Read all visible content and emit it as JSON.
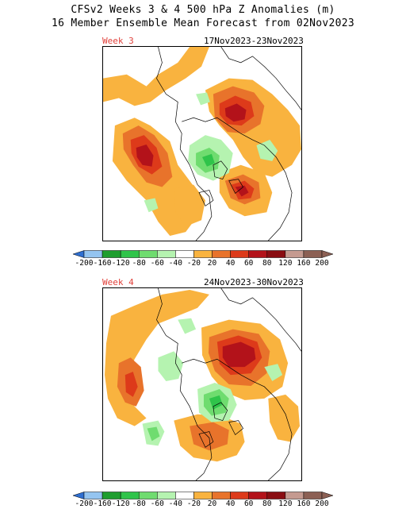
{
  "title": "CFSv2 Weeks 3 & 4 500 hPa Z Anomalies (m)",
  "subtitle": "16 Member Ensemble Mean Forecast from 02Nov2023",
  "colors": {
    "neg200": "#2f6fd1",
    "neg160": "#94c4f0",
    "neg120": "#1f9e2f",
    "neg80": "#2fc44a",
    "neg60": "#6fdc6f",
    "neg40": "#b5f3b0",
    "pos20": "#f9b33f",
    "pos40": "#e8732b",
    "pos60": "#dd3a1a",
    "pos80": "#b3121a",
    "pos120": "#8a0d12",
    "pos160": "#c59a90",
    "pos200": "#8c6054"
  },
  "colorbar": {
    "levels": [
      "-200",
      "-160",
      "-120",
      "-80",
      "-60",
      "-40",
      "-20",
      "20",
      "40",
      "60",
      "80",
      "120",
      "160",
      "200"
    ]
  },
  "panels": [
    {
      "label": "Week 3",
      "dates": "17Nov2023-23Nov2023"
    },
    {
      "label": "Week 4",
      "dates": "24Nov2023-30Nov2023"
    }
  ]
}
